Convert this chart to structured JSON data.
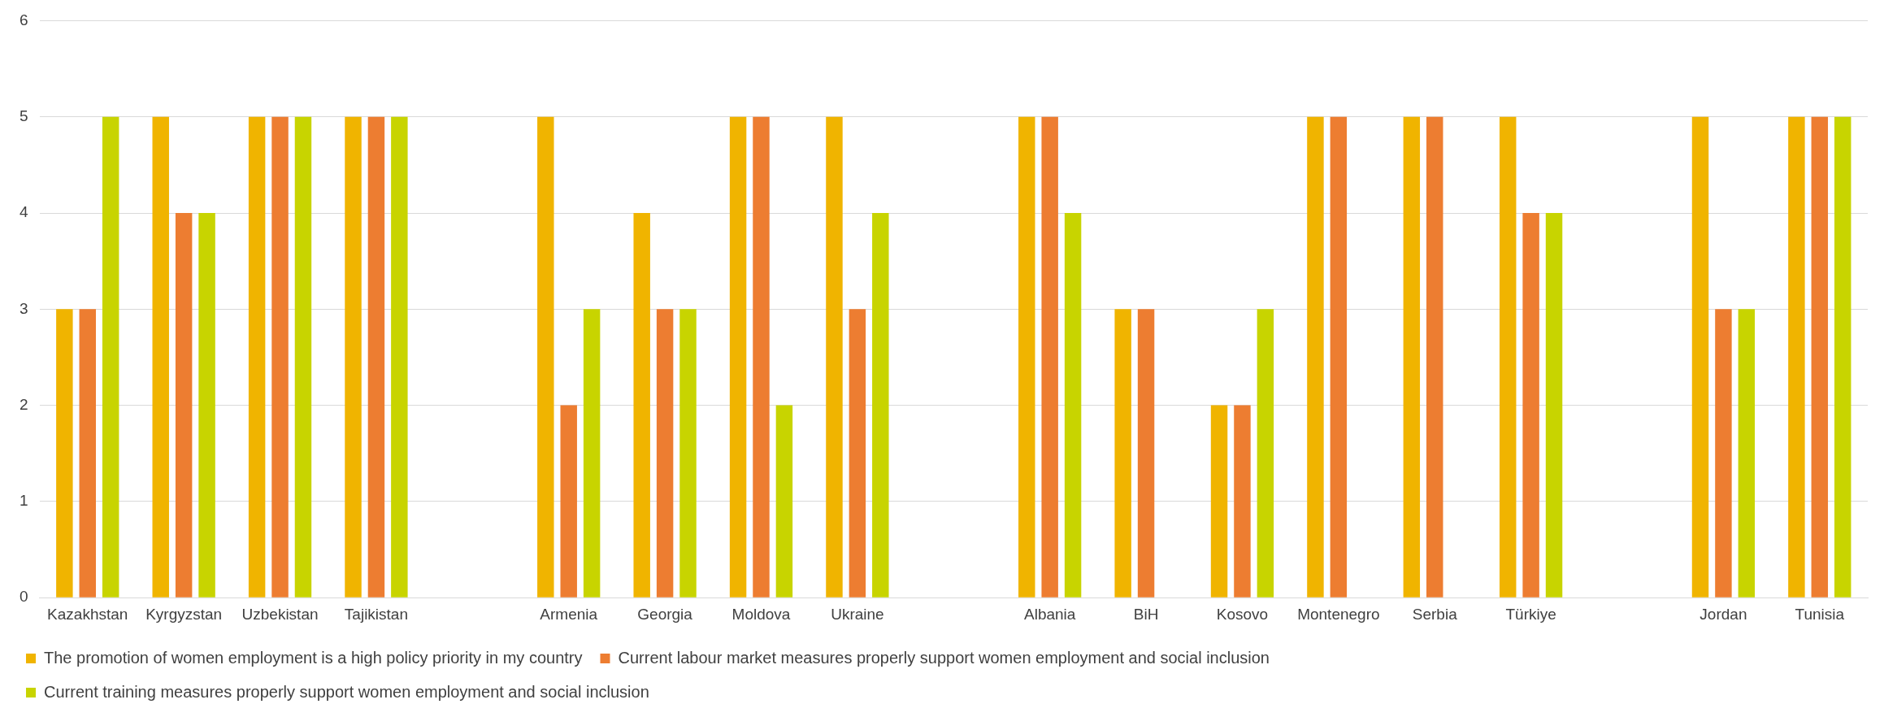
{
  "chart_data": {
    "type": "bar",
    "categories": [
      "Kazakhstan",
      "Kyrgyzstan",
      "Uzbekistan",
      "Tajikistan",
      null,
      "Armenia",
      "Georgia",
      "Moldova",
      "Ukraine",
      null,
      "Albania",
      "BiH",
      "Kosovo",
      "Montenegro",
      "Serbia",
      "Türkiye",
      null,
      "Jordan",
      "Tunisia"
    ],
    "series": [
      {
        "name": "The promotion of women employment is a high policy priority in my country",
        "color": "#f0b400",
        "values": [
          3,
          5,
          5,
          5,
          null,
          5,
          4,
          5,
          5,
          null,
          5,
          3,
          2,
          5,
          5,
          5,
          null,
          5,
          5
        ]
      },
      {
        "name": "Current labour market measures properly support women employment and social inclusion",
        "color": "#ed7d31",
        "values": [
          3,
          4,
          5,
          5,
          null,
          2,
          3,
          5,
          3,
          null,
          5,
          3,
          2,
          5,
          5,
          4,
          null,
          3,
          5
        ]
      },
      {
        "name": "Current training measures properly support women employment and social inclusion",
        "color": "#c8d400",
        "values": [
          5,
          4,
          5,
          5,
          null,
          3,
          3,
          2,
          4,
          null,
          4,
          null,
          3,
          null,
          null,
          4,
          null,
          3,
          5
        ]
      }
    ],
    "ylim": [
      0,
      6
    ],
    "yticks": [
      0,
      1,
      2,
      3,
      4,
      5,
      6
    ],
    "grid": "y",
    "legend": "bottom"
  }
}
